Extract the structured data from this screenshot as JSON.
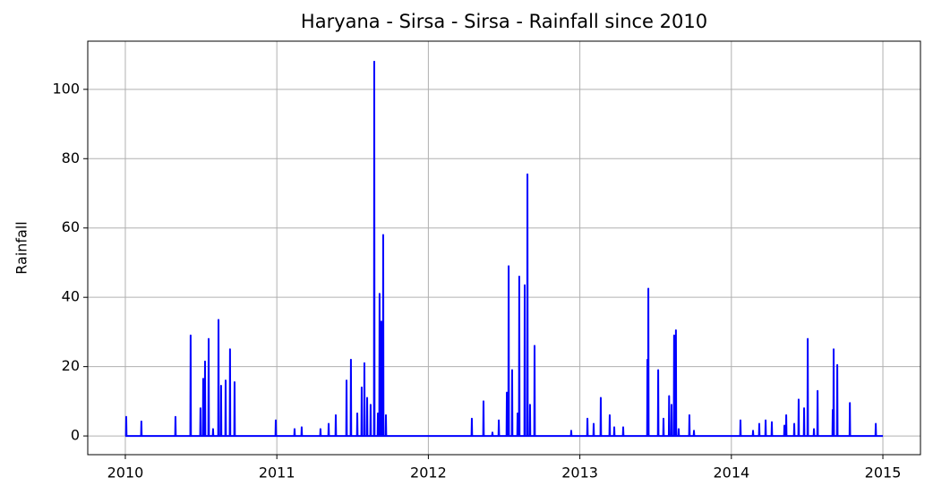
{
  "chart_data": {
    "type": "line",
    "title": "Haryana - Sirsa - Sirsa - Rainfall since 2010",
    "ylabel": "Rainfall",
    "xlim": [
      2009.752,
      2015.248
    ],
    "xticks": [
      2010,
      2011,
      2012,
      2013,
      2014,
      2015
    ],
    "ylim": [
      -5.4,
      113.9
    ],
    "yticks": [
      0,
      20,
      40,
      60,
      80,
      100
    ],
    "grid": true,
    "x": [
      2010.0,
      2010.004,
      2010.006,
      2010.008,
      2010.104,
      2010.106,
      2010.108,
      2010.329,
      2010.331,
      2010.333,
      2010.429,
      2010.431,
      2010.433,
      2010.494,
      2010.496,
      2010.498,
      2010.512,
      2010.514,
      2010.516,
      2010.524,
      2010.526,
      2010.528,
      2010.548,
      2010.55,
      2010.552,
      2010.577,
      2010.579,
      2010.581,
      2010.613,
      2010.615,
      2010.617,
      2010.63,
      2010.632,
      2010.634,
      2010.66,
      2010.662,
      2010.664,
      2010.689,
      2010.691,
      2010.693,
      2010.719,
      2010.721,
      2010.723,
      2010.991,
      2010.993,
      2010.995,
      2011.115,
      2011.117,
      2011.119,
      2011.162,
      2011.164,
      2011.166,
      2011.286,
      2011.288,
      2011.29,
      2011.34,
      2011.342,
      2011.344,
      2011.387,
      2011.389,
      2011.391,
      2011.458,
      2011.46,
      2011.462,
      2011.487,
      2011.489,
      2011.491,
      2011.529,
      2011.531,
      2011.533,
      2011.558,
      2011.56,
      2011.562,
      2011.576,
      2011.578,
      2011.58,
      2011.594,
      2011.596,
      2011.598,
      2011.617,
      2011.619,
      2011.621,
      2011.641,
      2011.643,
      2011.645,
      2011.665,
      2011.667,
      2011.669,
      2011.676,
      2011.678,
      2011.68,
      2011.688,
      2011.69,
      2011.692,
      2011.7,
      2011.702,
      2011.704,
      2011.718,
      2011.72,
      2011.722,
      2012.285,
      2012.287,
      2012.289,
      2012.362,
      2012.364,
      2012.366,
      2012.421,
      2012.423,
      2012.425,
      2012.463,
      2012.465,
      2012.467,
      2012.516,
      2012.518,
      2012.52,
      2012.528,
      2012.53,
      2012.532,
      2012.551,
      2012.553,
      2012.555,
      2012.587,
      2012.589,
      2012.591,
      2012.598,
      2012.6,
      2012.602,
      2012.634,
      2012.636,
      2012.638,
      2012.652,
      2012.654,
      2012.656,
      2012.669,
      2012.671,
      2012.673,
      2012.699,
      2012.701,
      2012.703,
      2012.941,
      2012.943,
      2012.945,
      2013.048,
      2013.05,
      2013.052,
      2013.089,
      2013.091,
      2013.093,
      2013.136,
      2013.138,
      2013.14,
      2013.195,
      2013.197,
      2013.199,
      2013.225,
      2013.227,
      2013.229,
      2013.284,
      2013.286,
      2013.288,
      2013.444,
      2013.446,
      2013.448,
      2013.45,
      2013.452,
      2013.454,
      2013.515,
      2013.517,
      2013.519,
      2013.55,
      2013.552,
      2013.554,
      2013.587,
      2013.589,
      2013.591,
      2013.603,
      2013.605,
      2013.607,
      2013.62,
      2013.622,
      2013.624,
      2013.632,
      2013.634,
      2013.636,
      2013.65,
      2013.652,
      2013.654,
      2013.721,
      2013.723,
      2013.725,
      2013.751,
      2013.753,
      2013.755,
      2014.058,
      2014.06,
      2014.062,
      2014.141,
      2014.143,
      2014.145,
      2014.182,
      2014.184,
      2014.186,
      2014.224,
      2014.226,
      2014.228,
      2014.265,
      2014.267,
      2014.269,
      2014.348,
      2014.35,
      2014.352,
      2014.36,
      2014.362,
      2014.364,
      2014.413,
      2014.415,
      2014.417,
      2014.442,
      2014.444,
      2014.446,
      2014.478,
      2014.48,
      2014.482,
      2014.502,
      2014.504,
      2014.506,
      2014.543,
      2014.545,
      2014.547,
      2014.567,
      2014.569,
      2014.571,
      2014.667,
      2014.669,
      2014.671,
      2014.673,
      2014.675,
      2014.677,
      2014.697,
      2014.699,
      2014.701,
      2014.78,
      2014.782,
      2014.784,
      2014.951,
      2014.953,
      2014.955,
      2015.0
    ],
    "series": [
      {
        "color": "#0000ff",
        "values": [
          0,
          0,
          5.5,
          0,
          0,
          4.2,
          0,
          0,
          5.5,
          0,
          0,
          29,
          0,
          0,
          8,
          0,
          0,
          16.5,
          0,
          0,
          21.5,
          0,
          0,
          28,
          0,
          0,
          2,
          0,
          0,
          33.5,
          0,
          0,
          14.5,
          0,
          0,
          16,
          0,
          0,
          25,
          0,
          0,
          15.5,
          0,
          0,
          4.5,
          0,
          0,
          2,
          0,
          0,
          2.5,
          0,
          0,
          2,
          0,
          0,
          3.5,
          0,
          0,
          6,
          0,
          0,
          16,
          0,
          0,
          22,
          0,
          0,
          6.5,
          0,
          0,
          14,
          0,
          0,
          21,
          0,
          0,
          11,
          0,
          0,
          9,
          0,
          0,
          108,
          0,
          0,
          6.5,
          0,
          0,
          41,
          0,
          0,
          33,
          0,
          0,
          58,
          0,
          0,
          6,
          0,
          0,
          5,
          0,
          0,
          10,
          0,
          0,
          1,
          0,
          0,
          4.5,
          0,
          0,
          12.5,
          0,
          0,
          49,
          0,
          0,
          19,
          0,
          0,
          6.5,
          0,
          0,
          46,
          0,
          0,
          43.5,
          0,
          0,
          75.5,
          0,
          0,
          9,
          0,
          0,
          26,
          0,
          0,
          1.5,
          0,
          0,
          5,
          0,
          0,
          3.5,
          0,
          0,
          11,
          0,
          0,
          6,
          0,
          0,
          2.5,
          0,
          0,
          2.5,
          0,
          0,
          22,
          0,
          0,
          42.5,
          0,
          0,
          19,
          0,
          0,
          5,
          0,
          0,
          11.5,
          0,
          0,
          9,
          0,
          0,
          29,
          0,
          0,
          30.5,
          0,
          0,
          2,
          0,
          0,
          6,
          0,
          0,
          1.5,
          0,
          0,
          4.5,
          0,
          0,
          1.5,
          0,
          0,
          3.5,
          0,
          0,
          4.5,
          0,
          0,
          4,
          0,
          0,
          3,
          0,
          0,
          6,
          0,
          0,
          3.5,
          0,
          0,
          10.5,
          0,
          0,
          8,
          0,
          0,
          28,
          0,
          0,
          2,
          0,
          0,
          13,
          0,
          0,
          7.5,
          0,
          0,
          25,
          0,
          0,
          20.5,
          0,
          0,
          9.5,
          0,
          0,
          3.5,
          0,
          0
        ]
      }
    ]
  }
}
